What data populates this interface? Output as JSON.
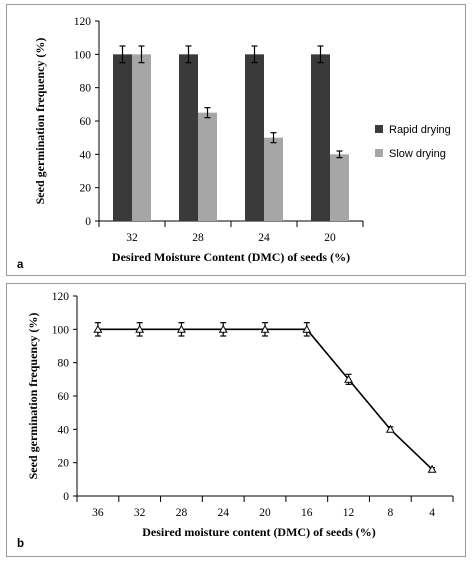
{
  "chart_data": [
    {
      "panel_label": "a",
      "type": "bar",
      "categories": [
        "32",
        "28",
        "24",
        "20"
      ],
      "series": [
        {
          "name": "Rapid drying",
          "color": "#3a3a3a",
          "values": [
            100,
            100,
            100,
            100
          ],
          "error": [
            5,
            5,
            5,
            5
          ]
        },
        {
          "name": "Slow drying",
          "color": "#a6a6a6",
          "values": [
            100,
            65,
            50,
            40
          ],
          "error": [
            5,
            3,
            3,
            2
          ]
        }
      ],
      "xlabel": "Desired Moisture Content (DMC) of seeds (%)",
      "ylabel": "Seed germination frequency (%)",
      "ylim": [
        0,
        120
      ],
      "yticks": [
        "0",
        "20",
        "40",
        "60",
        "80",
        "100",
        "120"
      ],
      "legend": "right",
      "grid": false
    },
    {
      "panel_label": "b",
      "type": "line",
      "x": [
        "36",
        "32",
        "28",
        "24",
        "20",
        "16",
        "12",
        "8",
        "4"
      ],
      "values": [
        100,
        100,
        100,
        100,
        100,
        100,
        70,
        40,
        16
      ],
      "error": [
        4,
        4,
        4,
        4,
        4,
        4,
        3,
        1.5,
        1
      ],
      "marker": "triangle",
      "color": "#000000",
      "xlabel": "Desired moisture content (DMC) of seeds (%)",
      "ylabel": "Seed germination frequency (%)",
      "ylim": [
        0,
        120
      ],
      "yticks": [
        "0",
        "20",
        "40",
        "60",
        "80",
        "100",
        "120"
      ],
      "grid": false
    }
  ]
}
